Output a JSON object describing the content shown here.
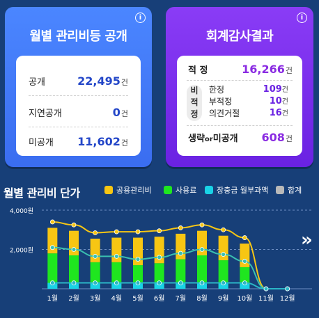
{
  "disclosure_card": {
    "title": "월별 관리비등 공개",
    "rows": [
      {
        "label": "공개",
        "value": "22,495",
        "unit": "건"
      },
      {
        "label": "지연공개",
        "value": "0",
        "unit": "건"
      },
      {
        "label": "미공개",
        "value": "11,602",
        "unit": "건"
      }
    ]
  },
  "audit_card": {
    "title": "회계감사결과",
    "adequate": {
      "label": "적 정",
      "value": "16,266",
      "unit": "건"
    },
    "non_adequate_label": [
      "비",
      "적",
      "정"
    ],
    "non_adequate_items": [
      {
        "label": "한정",
        "value": "109",
        "unit": "건"
      },
      {
        "label": "부적정",
        "value": "10",
        "unit": "건"
      },
      {
        "label": "의견거절",
        "value": "16",
        "unit": "건"
      }
    ],
    "omitted": {
      "label_main": "생략",
      "label_mid": "or",
      "label_tail": "미공개",
      "value": "608",
      "unit": "건"
    }
  },
  "chart_section": {
    "title": "월별 관리비 단가",
    "legend": [
      {
        "label": "공용관리비",
        "color": "#f7c613"
      },
      {
        "label": "사용료",
        "color": "#1fe61f"
      },
      {
        "label": "장충금 월부과액",
        "color": "#19d3e6"
      },
      {
        "label": "합계",
        "color": "#b9b9b9"
      }
    ]
  },
  "chart_data": {
    "type": "bar",
    "categories": [
      "1월",
      "2월",
      "3월",
      "4월",
      "5월",
      "6월",
      "7월",
      "8월",
      "9월",
      "10월",
      "11월",
      "12월"
    ],
    "ytick_labels": [
      "4,000원",
      "2,000원"
    ],
    "ylim": [
      0,
      4000
    ],
    "series": [
      {
        "name": "공용관리비",
        "type": "bar",
        "color": "#f7c613",
        "values": [
          1300,
          1250,
          1200,
          1250,
          1400,
          1350,
          1300,
          1250,
          1250,
          1200,
          0,
          0
        ]
      },
      {
        "name": "사용료",
        "type": "bar",
        "color": "#1fe61f",
        "values": [
          1800,
          1700,
          1350,
          1350,
          1200,
          1300,
          1500,
          1700,
          1450,
          1100,
          0,
          0
        ]
      },
      {
        "name": "장충금 월부과액",
        "type": "bar",
        "color": "#19d3e6",
        "values": [
          300,
          300,
          300,
          300,
          300,
          300,
          300,
          300,
          300,
          300,
          0,
          0
        ]
      },
      {
        "name": "합계",
        "type": "line",
        "color": "#f7c613",
        "values": [
          3400,
          3250,
          2850,
          2900,
          2900,
          2950,
          3100,
          3250,
          3000,
          2600,
          0,
          0
        ]
      },
      {
        "name": "사용료 추이",
        "type": "line",
        "color": "#3ac0b0",
        "values": [
          2100,
          2000,
          1650,
          1650,
          1500,
          1600,
          1800,
          2000,
          1750,
          1400,
          0,
          0
        ]
      },
      {
        "name": "장충금 추이",
        "type": "line",
        "color": "#2bb6c6",
        "values": [
          300,
          300,
          300,
          300,
          300,
          300,
          300,
          300,
          300,
          300,
          0,
          0
        ]
      }
    ],
    "grid": true
  },
  "next_arrow": "»",
  "info_glyph": "i"
}
